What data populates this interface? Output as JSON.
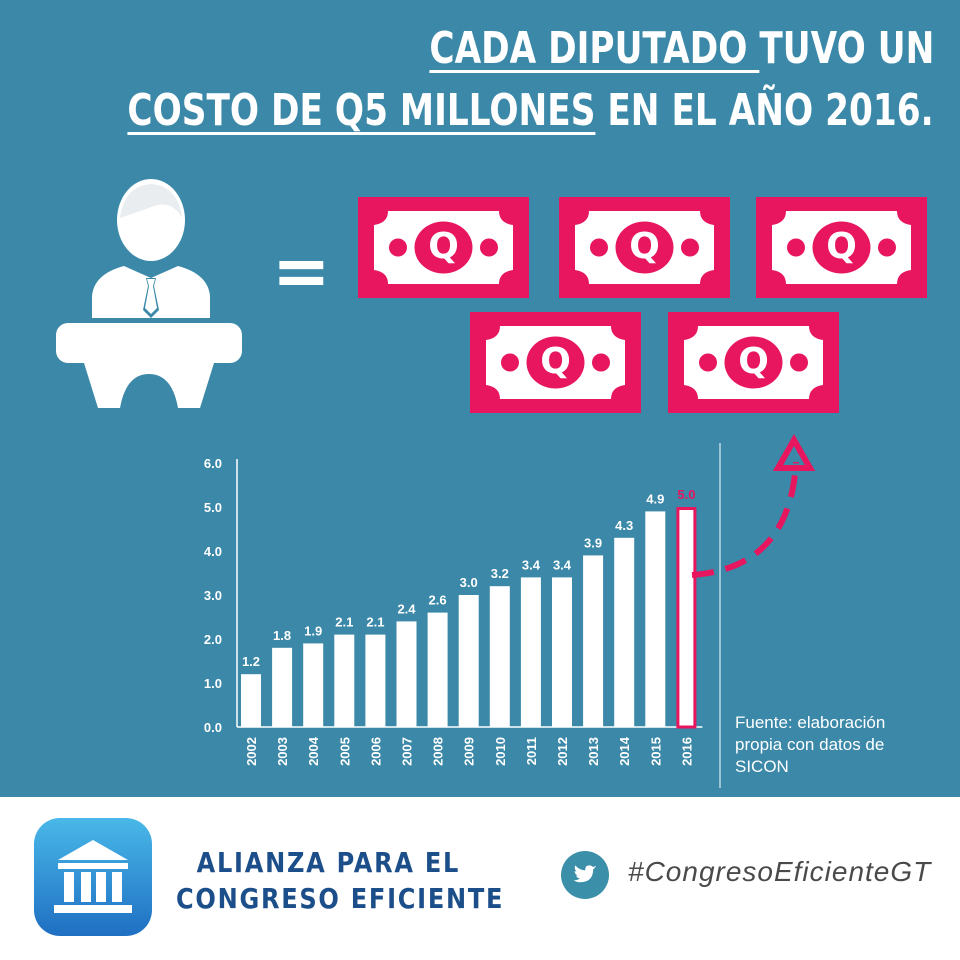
{
  "headline": {
    "line1_underlined": "CADA DIPUTADO ",
    "line1_rest": "TUVO UN",
    "line2_underlined": "COSTO DE Q5 MILLONES",
    "line2_rest": " EN  EL AÑO 2016."
  },
  "equation": {
    "equals_sign": "=",
    "bill_symbol": "Q",
    "bill_count": 5
  },
  "chart_data": {
    "type": "bar",
    "categories": [
      "2002",
      "2003",
      "2004",
      "2005",
      "2006",
      "2007",
      "2008",
      "2009",
      "2010",
      "2011",
      "2012",
      "2013",
      "2014",
      "2015",
      "2016"
    ],
    "values": [
      1.2,
      1.8,
      1.9,
      2.1,
      2.1,
      2.4,
      2.6,
      3.0,
      3.2,
      3.4,
      3.4,
      3.9,
      4.3,
      4.9,
      5.0
    ],
    "data_labels": [
      "1.2",
      "1.8",
      "1.9",
      "2.1",
      "2.1",
      "2.4",
      "2.6",
      "3.0",
      "3.2",
      "3.4",
      "3.4",
      "3.9",
      "4.3",
      "4.9",
      "5.0"
    ],
    "y_ticks": [
      "0.0",
      "1.0",
      "2.0",
      "3.0",
      "4.0",
      "5.0",
      "6.0"
    ],
    "ylim": [
      0,
      6
    ],
    "highlight_category": "2016",
    "grid": false,
    "title": "",
    "xlabel": "",
    "ylabel": ""
  },
  "source_note": {
    "line1": "Fuente: elaboración",
    "line2": "propia con datos de",
    "line3": "SICON"
  },
  "footer": {
    "org_line1": "ALIANZA PARA EL",
    "org_line2": "CONGRESO EFICIENTE",
    "hashtag": "#CongresoEficienteGT"
  },
  "colors": {
    "background": "#3b88a8",
    "footer_background": "#ffffff",
    "accent_pink": "#e8155f",
    "bar_white": "#ffffff",
    "org_blue": "#1c4f8a",
    "twitter_teal": "#3b8fa8"
  },
  "icons": [
    "deputy-at-podium-icon",
    "money-bill-icon",
    "congress-building-icon",
    "twitter-bird-icon",
    "dashed-arrow-icon"
  ]
}
